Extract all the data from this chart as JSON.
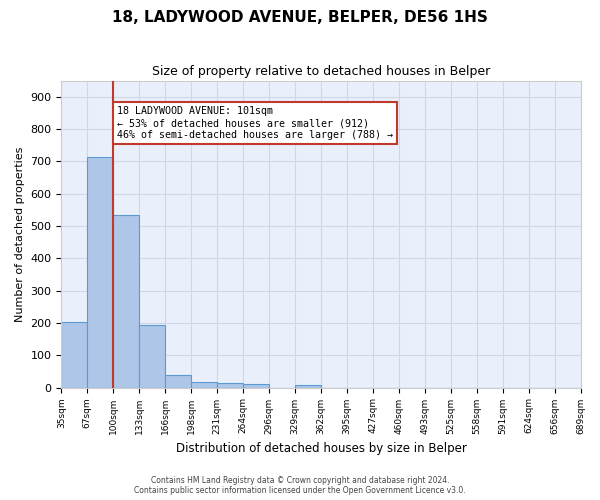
{
  "title": "18, LADYWOOD AVENUE, BELPER, DE56 1HS",
  "subtitle": "Size of property relative to detached houses in Belper",
  "xlabel": "Distribution of detached houses by size in Belper",
  "ylabel": "Number of detached properties",
  "footer_line1": "Contains HM Land Registry data © Crown copyright and database right 2024.",
  "footer_line2": "Contains public sector information licensed under the Open Government Licence v3.0.",
  "bin_labels": [
    "35sqm",
    "67sqm",
    "100sqm",
    "133sqm",
    "166sqm",
    "198sqm",
    "231sqm",
    "264sqm",
    "296sqm",
    "329sqm",
    "362sqm",
    "395sqm",
    "427sqm",
    "460sqm",
    "493sqm",
    "525sqm",
    "558sqm",
    "591sqm",
    "624sqm",
    "656sqm",
    "689sqm"
  ],
  "bar_values": [
    202,
    714,
    533,
    193,
    40,
    18,
    13,
    11,
    0,
    9,
    0,
    0,
    0,
    0,
    0,
    0,
    0,
    0,
    0,
    0
  ],
  "bar_color": "#aec6e8",
  "bar_edge_color": "#5b9bd5",
  "grid_color": "#d0d8e8",
  "background_color": "#eaf0fb",
  "property_label": "18 LADYWOOD AVENUE: 101sqm",
  "annotation_line1": "← 53% of detached houses are smaller (912)",
  "annotation_line2": "46% of semi-detached houses are larger (788) →",
  "vline_color": "#c0392b",
  "vline_x_bin": 2,
  "annotation_box_color": "#ffffff",
  "annotation_box_edge_color": "#c0392b",
  "ylim": [
    0,
    950
  ],
  "yticks": [
    0,
    100,
    200,
    300,
    400,
    500,
    600,
    700,
    800,
    900
  ]
}
